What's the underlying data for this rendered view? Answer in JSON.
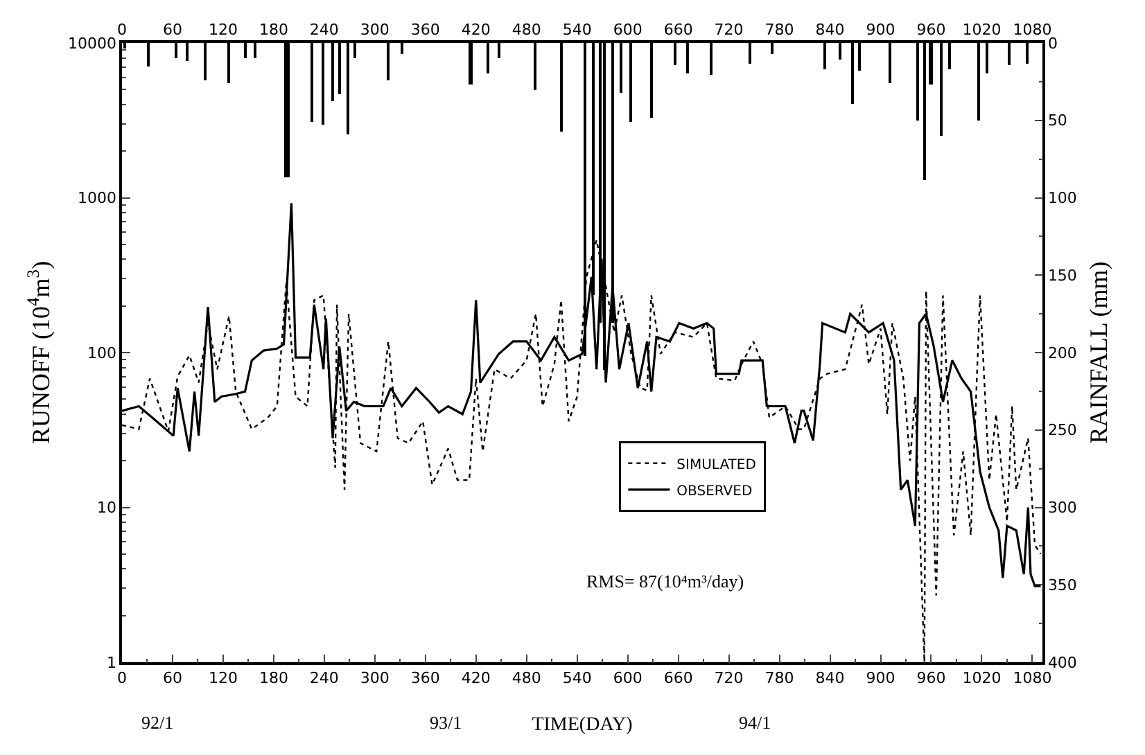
{
  "chart_data": {
    "type": "line",
    "xlabel": "TIME(DAY)",
    "ylabel": "RUNOFF (10$^{4}$m$^{3}$)",
    "y2label": "RAINFALL (mm)",
    "xlim": [
      0,
      1092
    ],
    "xticks": [
      0,
      60,
      120,
      180,
      240,
      300,
      360,
      420,
      480,
      540,
      600,
      660,
      720,
      780,
      840,
      900,
      960,
      1020,
      1080
    ],
    "x2lim": [
      0,
      1092
    ],
    "x2ticks": [
      0,
      60,
      120,
      180,
      240,
      300,
      360,
      420,
      480,
      540,
      600,
      660,
      720,
      780,
      840,
      900,
      960,
      1020,
      1080
    ],
    "ylim": [
      1,
      10000
    ],
    "yticks": [
      1,
      10,
      100,
      1000,
      10000
    ],
    "y2lim": [
      400,
      0
    ],
    "y2ticks": [
      0,
      50,
      100,
      150,
      200,
      250,
      300,
      350,
      400
    ],
    "log": "y",
    "grid": false,
    "legend": "bottom right",
    "marker": "none",
    "annotations": [
      "92/1",
      "93/1",
      "94/1",
      "RMS= 87(10⁴m³/day)"
    ],
    "series": [
      {
        "name": "SIMULATED",
        "line_style": "dotted",
        "color": "#000000",
        "x": [
          0,
          20,
          33,
          55,
          66,
          80,
          91,
          102,
          113,
          127,
          135,
          154,
          173,
          184,
          195,
          206,
          220,
          228,
          239,
          253,
          255,
          264,
          269,
          283,
          302,
          316,
          327,
          340,
          357,
          368,
          387,
          398,
          412,
          420,
          428,
          442,
          461,
          480,
          491,
          499,
          513,
          521,
          530,
          540,
          551,
          563,
          574,
          584,
          593,
          604,
          615,
          623,
          628,
          639,
          656,
          678,
          694,
          705,
          727,
          735,
          749,
          760,
          768,
          787,
          803,
          809,
          828,
          837,
          858,
          878,
          886,
          900,
          908,
          914,
          927,
          935,
          941,
          952,
          954,
          966,
          974,
          987,
          998,
          1007,
          1018,
          1029,
          1037,
          1050,
          1056,
          1061,
          1075,
          1083,
          1090
        ],
        "values": [
          34,
          32,
          68,
          31,
          70,
          96,
          64,
          155,
          78,
          172,
          56,
          32,
          38,
          45,
          288,
          52,
          45,
          218,
          234,
          18,
          204,
          13,
          178,
          26,
          23,
          118,
          28,
          26,
          36,
          14,
          24,
          15,
          15,
          68,
          23,
          78,
          68,
          89,
          178,
          45,
          84,
          218,
          36,
          52,
          308,
          533,
          268,
          135,
          234,
          98,
          59,
          57,
          234,
          98,
          135,
          126,
          155,
          68,
          66,
          84,
          118,
          84,
          38,
          45,
          32,
          32,
          68,
          73,
          78,
          204,
          84,
          143,
          40,
          155,
          68,
          20,
          52,
          1,
          250,
          2.7,
          234,
          6.6,
          23,
          6.6,
          234,
          15,
          40,
          8.1,
          45,
          13,
          28,
          5.7,
          5
        ]
      },
      {
        "name": "OBSERVED",
        "line_style": "solid",
        "color": "#000000",
        "x": [
          0,
          20,
          36,
          61,
          66,
          80,
          86,
          91,
          102,
          110,
          118,
          135,
          146,
          154,
          168,
          184,
          192,
          201,
          206,
          223,
          228,
          239,
          242,
          250,
          258,
          266,
          275,
          288,
          310,
          319,
          332,
          349,
          365,
          376,
          387,
          404,
          414,
          420,
          425,
          447,
          464,
          480,
          497,
          513,
          530,
          546,
          557,
          563,
          569,
          574,
          582,
          590,
          601,
          612,
          623,
          628,
          634,
          650,
          661,
          678,
          694,
          702,
          705,
          732,
          735,
          760,
          765,
          787,
          798,
          806,
          809,
          820,
          828,
          831,
          858,
          864,
          886,
          903,
          916,
          924,
          932,
          941,
          946,
          954,
          963,
          974,
          985,
          996,
          1007,
          1018,
          1029,
          1040,
          1045,
          1050,
          1061,
          1070,
          1075,
          1078,
          1083,
          1090
        ],
        "values": [
          42,
          45,
          38,
          29,
          59,
          23,
          56,
          29,
          197,
          48,
          52,
          54,
          56,
          89,
          103,
          106,
          113,
          923,
          93,
          93,
          204,
          78,
          166,
          28,
          109,
          42,
          48,
          45,
          45,
          59,
          45,
          59,
          48,
          41,
          45,
          40,
          56,
          218,
          64,
          98,
          118,
          118,
          89,
          126,
          89,
          98,
          308,
          78,
          405,
          64,
          268,
          78,
          155,
          59,
          118,
          56,
          126,
          118,
          155,
          143,
          155,
          143,
          73,
          73,
          89,
          89,
          45,
          45,
          26,
          42,
          42,
          27,
          84,
          155,
          135,
          178,
          135,
          155,
          89,
          13,
          15,
          7.6,
          155,
          178,
          110,
          48,
          89,
          68,
          56,
          17,
          10,
          7.1,
          3.5,
          7.6,
          7.1,
          3.7,
          10,
          3.7,
          3.1,
          3.1
        ]
      },
      {
        "type": "bar",
        "axis": "y2",
        "color": "#000000",
        "x": [
          4,
          32,
          64,
          77,
          99,
          127,
          146,
          158,
          195,
          198,
          225,
          239,
          250,
          258,
          269,
          277,
          316,
          332,
          414,
          434,
          447,
          491,
          521,
          549,
          560,
          568,
          573,
          583,
          593,
          604,
          628,
          656,
          672,
          700,
          746,
          771,
          834,
          853,
          867,
          875,
          911,
          945,
          953,
          960,
          973,
          982,
          1016,
          1026,
          1053,
          1075
        ],
        "values": [
          4,
          15,
          10,
          12,
          24,
          26,
          10,
          10,
          87,
          87,
          51,
          53,
          38,
          33,
          59,
          10,
          24,
          7,
          27,
          20,
          10,
          30,
          57,
          202,
          163,
          181,
          211,
          181,
          32,
          51,
          48,
          14,
          20,
          21,
          13,
          7,
          17,
          11,
          39,
          18,
          26,
          50,
          89,
          27,
          60,
          17,
          50,
          20,
          14,
          13
        ]
      }
    ]
  }
}
